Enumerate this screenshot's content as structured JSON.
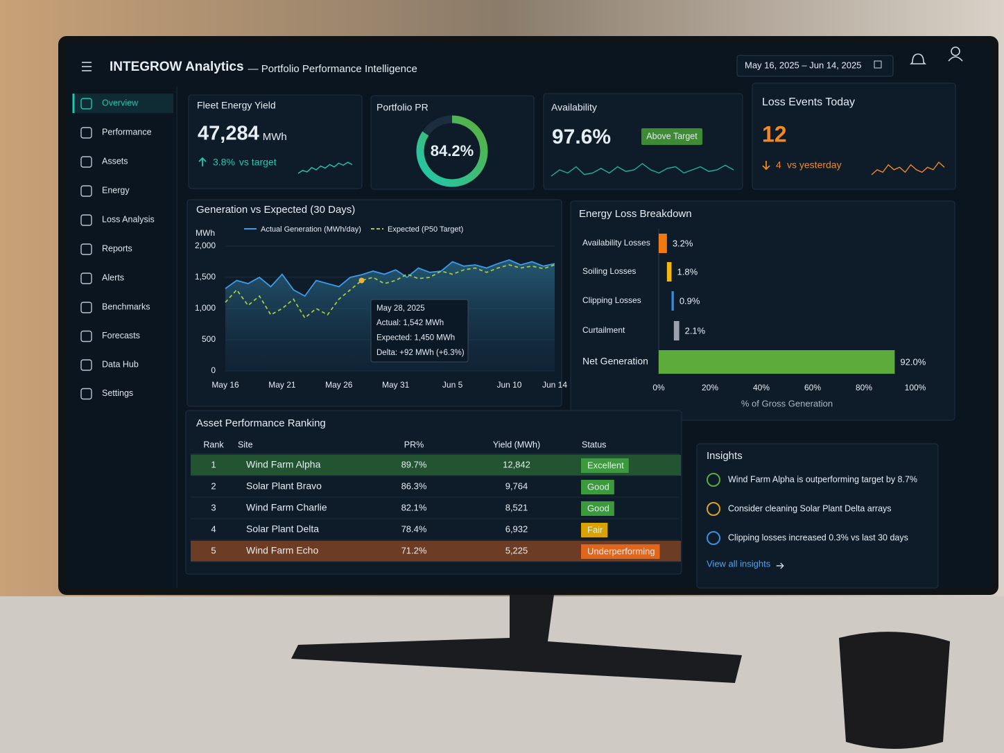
{
  "header": {
    "title": "INTEGROW Analytics",
    "subtitle": "— Portfolio Performance Intelligence",
    "date_range": "May 16, 2025 – Jun 14, 2025"
  },
  "nav": [
    "Overview",
    "Performance",
    "Assets",
    "Energy",
    "Loss Analysis",
    "Reports",
    "Alerts",
    "Benchmarks",
    "Forecasts",
    "Data Hub",
    "Settings"
  ],
  "kpis": {
    "yield": {
      "title": "Fleet Energy Yield",
      "value": "47,284",
      "unit": "MWh",
      "delta": "3.8%",
      "delta_label": "vs target",
      "sparkline": [
        3,
        4,
        3.5,
        5,
        4.2,
        5.5,
        4.8,
        6,
        5.2,
        6.5,
        5.8,
        6.8,
        6
      ]
    },
    "pr": {
      "title": "Portfolio PR",
      "value": 84.2,
      "value_label": "84.2%",
      "lim": [
        0,
        100
      ]
    },
    "availability": {
      "title": "Availability",
      "value": "97.6%",
      "badge": "Above Target",
      "sparkline": [
        4,
        6,
        5,
        7,
        4.5,
        5,
        6.5,
        5,
        7,
        5.5,
        6,
        8,
        6,
        5,
        6.5,
        7,
        5,
        6,
        7,
        5.5,
        6,
        7.5,
        6
      ]
    },
    "loss_events": {
      "title": "Loss Events Today",
      "value": "12",
      "delta": "4",
      "delta_label": "vs yesterday",
      "sparkline": [
        3,
        5,
        4,
        7,
        5,
        6,
        4,
        7,
        5,
        4,
        6,
        5,
        8,
        6
      ]
    }
  },
  "chart_data": [
    {
      "type": "line",
      "title": "Generation vs Expected (30 Days)",
      "y_label": "MWh",
      "categories": [
        "May 16",
        null,
        null,
        null,
        null,
        "May 21",
        null,
        null,
        null,
        null,
        "May 26",
        null,
        null,
        null,
        null,
        "May 31",
        null,
        null,
        null,
        null,
        "Jun 5",
        null,
        null,
        null,
        null,
        "Jun 10",
        null,
        null,
        null,
        "Jun 14"
      ],
      "series": [
        {
          "name": "Actual Generation (MWh/day)",
          "color": "#3d9be9",
          "values": [
            1320,
            1450,
            1400,
            1500,
            1350,
            1550,
            1300,
            1200,
            1450,
            1400,
            1350,
            1500,
            1542,
            1600,
            1550,
            1620,
            1500,
            1650,
            1580,
            1600,
            1750,
            1680,
            1700,
            1650,
            1720,
            1780,
            1700,
            1750,
            1680,
            1720
          ]
        },
        {
          "name": "Expected (P50 Target)",
          "color": "#a7c93a",
          "values": [
            1100,
            1300,
            1050,
            1200,
            900,
            1000,
            1150,
            850,
            1000,
            900,
            1150,
            1300,
            1450,
            1500,
            1400,
            1450,
            1550,
            1480,
            1500,
            1600,
            1550,
            1620,
            1650,
            1580,
            1650,
            1700,
            1650,
            1680,
            1640,
            1700
          ]
        }
      ],
      "ylim": [
        0,
        2000
      ],
      "yticks": [
        0,
        500,
        {
          "value": 1000,
          "label": "1,000"
        },
        {
          "value": 1500,
          "label": "1,500"
        },
        {
          "value": 2000,
          "label": "2,000"
        }
      ],
      "tooltip": {
        "title": "May 28, 2025",
        "lines": [
          "Actual: 1,542 MWh",
          "Expected: 1,450 MWh",
          "Delta: +92 MWh (+6.3%)"
        ]
      }
    },
    {
      "type": "bar",
      "title": "Energy Loss Breakdown",
      "x_label": "% of Gross Generation",
      "categories": [
        "Availability Losses",
        "Soiling Losses",
        "Clipping Losses",
        "Curtailment",
        "Net Generation"
      ],
      "values": [
        3.2,
        1.8,
        0.9,
        2.1,
        92.0
      ],
      "value_labels": [
        "3.2%",
        "1.8%",
        "0.9%",
        "2.1%",
        "92.0%"
      ],
      "colors": [
        "#f07a12",
        "#f5b50f",
        "#2f8ee6",
        "#9aa3ad",
        "#5dab3a"
      ],
      "xlim": [
        0,
        100
      ],
      "xticks": [
        {
          "value": 0,
          "label": "0%"
        },
        {
          "value": 20,
          "label": "20%"
        },
        {
          "value": 40,
          "label": "40%"
        },
        {
          "value": 60,
          "label": "60%"
        },
        {
          "value": 80,
          "label": "80%"
        },
        {
          "value": 100,
          "label": "100%"
        }
      ]
    }
  ],
  "table": {
    "title": "Asset Performance Ranking",
    "columns": [
      "Rank",
      "Site",
      "PR%",
      "Yield (MWh)",
      "Status"
    ],
    "rows": [
      [
        "1",
        "Wind Farm Alpha",
        "89.7%",
        "12,842",
        "Excellent"
      ],
      [
        "2",
        "Solar Plant Bravo",
        "86.3%",
        "9,764",
        "Good"
      ],
      [
        "3",
        "Wind Farm Charlie",
        "82.1%",
        "8,521",
        "Good"
      ],
      [
        "4",
        "Solar Plant Delta",
        "78.4%",
        "6,932",
        "Fair"
      ],
      [
        "5",
        "Wind Farm Echo",
        "71.2%",
        "5,225",
        "Underperforming"
      ]
    ],
    "status_colors": [
      "#3b9a3b",
      "#3b9a3b",
      "#3b9a3b",
      "#d8a300",
      "#e0661c"
    ]
  },
  "insights": {
    "title": "Insights",
    "items": [
      "Wind Farm Alpha is outperforming target by 8.7%",
      "Consider cleaning Solar Plant Delta arrays",
      "Clipping losses increased 0.3% vs last 30 days"
    ],
    "link": "View all insights"
  }
}
